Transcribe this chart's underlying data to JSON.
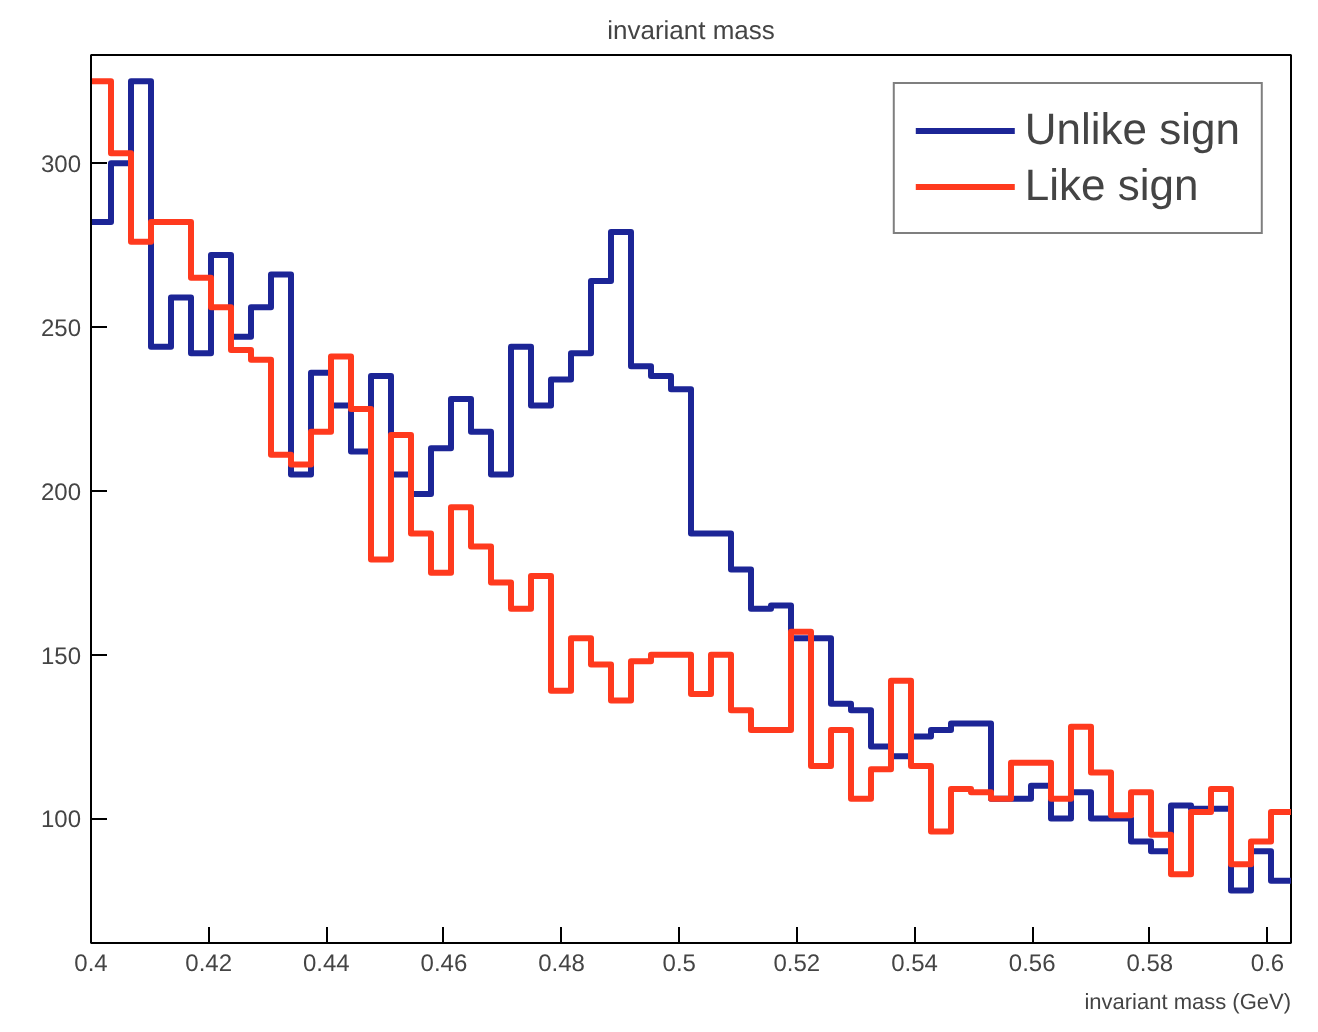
{
  "chart_data": {
    "type": "histogram",
    "title": "invariant mass",
    "xlabel": "invariant mass (GeV)",
    "bins": [
      0.4,
      0.4034,
      0.4068,
      0.4102,
      0.4136,
      0.417,
      0.4204,
      0.4238,
      0.4272,
      0.4306,
      0.434,
      0.4374,
      0.4408,
      0.4442,
      0.4476,
      0.451,
      0.4544,
      0.4578,
      0.4612,
      0.4646,
      0.468,
      0.4714,
      0.4748,
      0.4782,
      0.4816,
      0.485,
      0.4884,
      0.4918,
      0.4952,
      0.4986,
      0.502,
      0.5054,
      0.5088,
      0.5122,
      0.5156,
      0.519,
      0.5224,
      0.5258,
      0.5292,
      0.5326,
      0.536,
      0.5394,
      0.5428,
      0.5462,
      0.5496,
      0.553,
      0.5564,
      0.5598,
      0.5632,
      0.5666,
      0.57,
      0.5734,
      0.5768,
      0.5802,
      0.5836,
      0.587,
      0.5904,
      0.5938,
      0.5972,
      0.6006,
      0.604
    ],
    "series": [
      {
        "name": "Unlike sign",
        "color": "#1c2596",
        "values": [
          282,
          300,
          325,
          244,
          259,
          242,
          272,
          247,
          256,
          266,
          205,
          236,
          226,
          212,
          235,
          205,
          199,
          213,
          228,
          218,
          205,
          244,
          226,
          234,
          242,
          264,
          279,
          238,
          235,
          231,
          187,
          187,
          176,
          164,
          165,
          155,
          155,
          135,
          133,
          122,
          119,
          125,
          127,
          129,
          129,
          106,
          106,
          110,
          100,
          108,
          100,
          100,
          93,
          90,
          104,
          103,
          103,
          78,
          90,
          81
        ]
      },
      {
        "name": "Like sign",
        "color": "#ff3a1e",
        "values": [
          325,
          303,
          276,
          282,
          282,
          265,
          256,
          243,
          240,
          211,
          208,
          218,
          241,
          225,
          179,
          217,
          187,
          175,
          195,
          183,
          172,
          164,
          174,
          139,
          155,
          147,
          136,
          148,
          150,
          150,
          138,
          150,
          133,
          127,
          127,
          157,
          116,
          127,
          106,
          115,
          142,
          116,
          96,
          109,
          108,
          106,
          117,
          117,
          106,
          128,
          114,
          101,
          108,
          95,
          83,
          102,
          109,
          86,
          93,
          102
        ]
      }
    ],
    "xlim": [
      0.4,
      0.604
    ],
    "ylim": [
      62,
      333
    ],
    "xticks": [
      0.4,
      0.42,
      0.44,
      0.46,
      0.48,
      0.5,
      0.52,
      0.54,
      0.56,
      0.58,
      0.6
    ],
    "yticks": [
      100,
      150,
      200,
      250,
      300
    ],
    "grid": false,
    "legend": "top right"
  }
}
